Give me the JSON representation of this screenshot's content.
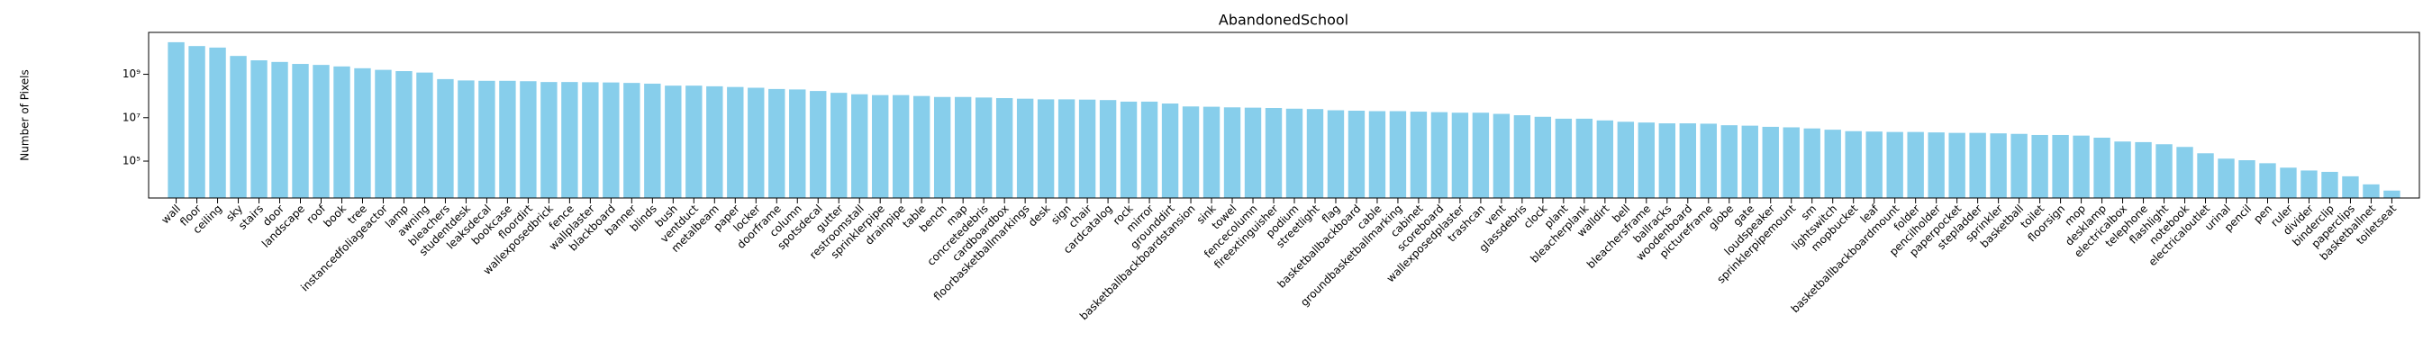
{
  "chart_data": {
    "type": "bar",
    "title": "AbandonedSchool",
    "ylabel": "Number of Pixels",
    "log_y": true,
    "color": "#87ceeb",
    "categories": [
      "wall",
      "floor",
      "ceiling",
      "sky",
      "stairs",
      "door",
      "landscape",
      "roof",
      "book",
      "tree",
      "instancedfoliageactor",
      "lamp",
      "awning",
      "bleachers",
      "studentdesk",
      "leaksdecal",
      "bookcase",
      "floordirt",
      "wallexposedbrick",
      "fence",
      "wallplaster",
      "blackboard",
      "banner",
      "blinds",
      "bush",
      "ventduct",
      "metalbeam",
      "paper",
      "locker",
      "doorframe",
      "column",
      "spotsdecal",
      "gutter",
      "restroomstall",
      "sprinklerpipe",
      "drainpipe",
      "table",
      "bench",
      "map",
      "concretedebris",
      "cardboardbox",
      "floorbasketballmarkings",
      "desk",
      "sign",
      "chair",
      "cardcatalog",
      "rock",
      "mirror",
      "grounddirt",
      "basketballbackboardstansion",
      "sink",
      "towel",
      "fencecolumn",
      "fireextinguisher",
      "podium",
      "streetlight",
      "flag",
      "basketballbackboard",
      "cable",
      "groundbasketballmarking",
      "cabinet",
      "scoreboard",
      "wallexposedplaster",
      "trashcan",
      "vent",
      "glassdebris",
      "clock",
      "plant",
      "bleacherplank",
      "walldirt",
      "bell",
      "bleachersframe",
      "ballracks",
      "woodenboard",
      "pictureframe",
      "globe",
      "gate",
      "loudspeaker",
      "sprinklerpipemount",
      "sm",
      "lightswitch",
      "mopbucket",
      "leaf",
      "basketballbackboardmount",
      "folder",
      "pencilholder",
      "paperpocket",
      "stepladder",
      "sprinkler",
      "basketball",
      "toilet",
      "floorsign",
      "mop",
      "desklamp",
      "electricalbox",
      "telephone",
      "flashlight",
      "notebook",
      "electricaloutlet",
      "urinal",
      "pencil",
      "pen",
      "ruler",
      "divider",
      "binderclip",
      "paperclips",
      "basketballnet",
      "toiletseat"
    ],
    "values": [
      30000000000,
      20000000000,
      17000000000,
      7000000000,
      4400000000,
      3700000000,
      3000000000,
      2700000000,
      2300000000,
      1900000000,
      1600000000,
      1400000000,
      1200000000,
      600000000,
      520000000,
      500000000,
      500000000,
      480000000,
      440000000,
      440000000,
      430000000,
      420000000,
      400000000,
      370000000,
      300000000,
      300000000,
      280000000,
      260000000,
      240000000,
      210000000,
      200000000,
      170000000,
      140000000,
      120000000,
      110000000,
      110000000,
      100000000,
      90000000,
      90000000,
      85000000,
      80000000,
      75000000,
      70000000,
      70000000,
      68000000,
      65000000,
      55000000,
      55000000,
      45000000,
      33000000,
      32000000,
      30000000,
      29000000,
      28000000,
      26000000,
      25000000,
      22000000,
      21000000,
      20000000,
      20000000,
      19000000,
      18000000,
      17000000,
      17000000,
      15000000,
      13000000,
      11000000,
      9000000,
      9000000,
      7500000,
      6500000,
      6000000,
      5500000,
      5500000,
      5300000,
      4500000,
      4300000,
      3800000,
      3600000,
      3200000,
      2800000,
      2400000,
      2300000,
      2200000,
      2200000,
      2100000,
      2000000,
      2000000,
      1900000,
      1800000,
      1600000,
      1600000,
      1500000,
      1200000,
      800000,
      750000,
      600000,
      450000,
      230000,
      130000,
      110000,
      80000,
      50000,
      37000,
      32000,
      20000,
      8500,
      4400
    ],
    "ylim": [
      2000,
      85000000000
    ],
    "yticks": [
      {
        "value": 100000,
        "label": "10⁵"
      },
      {
        "value": 10000000,
        "label": "10⁷"
      },
      {
        "value": 1000000000,
        "label": "10⁹"
      }
    ]
  }
}
